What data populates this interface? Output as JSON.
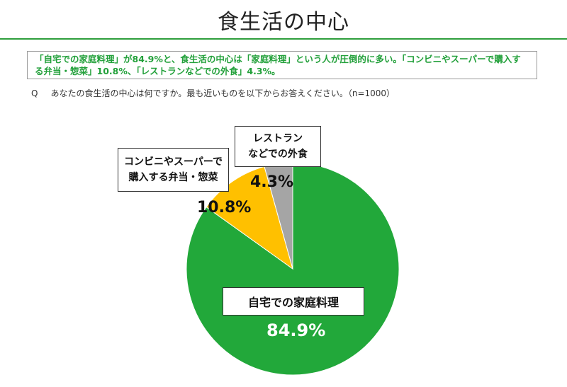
{
  "page": {
    "title": "食生活の中心",
    "summary": "「自宅での家庭料理」が84.9%と、食生活の中心は「家庭料理」という人が圧倒的に多い。「コンビニやスーパーで購入する弁当・惣菜」10.8%、「レストランなどでの外食」4.3%。",
    "question_mark": "Q",
    "question": "あなたの食生活の中心は何ですか。最も近いものを以下からお答えください。（n=1000）"
  },
  "chart_data": {
    "type": "pie",
    "start": "12 o'clock",
    "direction": "clockwise",
    "slices": [
      {
        "label": "自宅での家庭料理",
        "value": 84.9,
        "value_label": "84.9%",
        "color": "#22a83a"
      },
      {
        "label": "コンビニやスーパーで購入する弁当・惣菜",
        "label_lines": [
          "コンビニやスーパーで",
          "購入する弁当・惣菜"
        ],
        "value": 10.8,
        "value_label": "10.8%",
        "color": "#ffc000"
      },
      {
        "label": "レストランなどでの外食",
        "label_lines": [
          "レストラン",
          "などでの外食"
        ],
        "value": 4.3,
        "value_label": "4.3%",
        "color": "#a5a5a5"
      }
    ]
  }
}
